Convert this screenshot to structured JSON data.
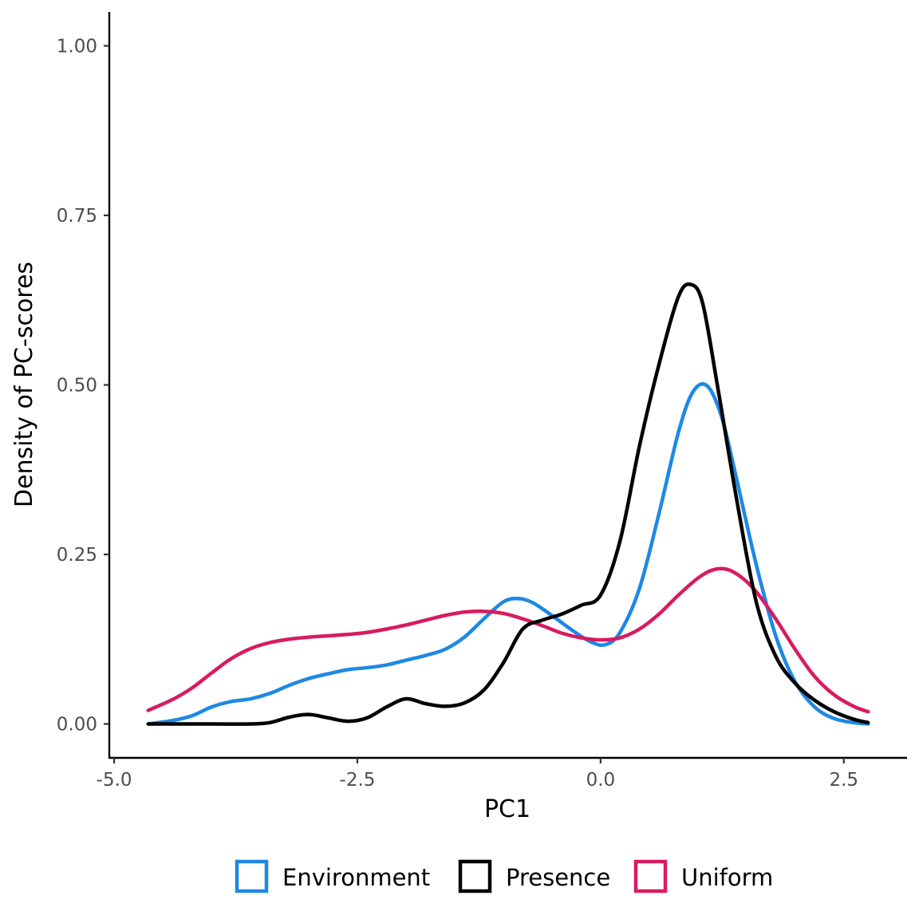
{
  "chart_data": {
    "type": "line",
    "xlabel": "PC1",
    "ylabel": "Density of PC-scores",
    "xlim": [
      -5.05,
      3.15
    ],
    "ylim": [
      -0.05,
      1.05
    ],
    "xticks": [
      -5.0,
      -2.5,
      0.0,
      2.5
    ],
    "xtick_labels": [
      "-5.0",
      "-2.5",
      "0.0",
      "2.5"
    ],
    "yticks": [
      0.0,
      0.25,
      0.5,
      0.75,
      1.0
    ],
    "ytick_labels": [
      "0.00",
      "0.25",
      "0.50",
      "0.75",
      "1.00"
    ],
    "grid": false,
    "legend_position": "bottom",
    "series": [
      {
        "name": "Environment",
        "color": "#1E88E5",
        "x": [
          -4.65,
          -4.4,
          -4.2,
          -4.0,
          -3.8,
          -3.6,
          -3.4,
          -3.2,
          -3.0,
          -2.8,
          -2.6,
          -2.4,
          -2.2,
          -2.0,
          -1.8,
          -1.6,
          -1.4,
          -1.2,
          -1.0,
          -0.85,
          -0.7,
          -0.5,
          -0.3,
          -0.1,
          0.05,
          0.2,
          0.4,
          0.6,
          0.8,
          0.95,
          1.1,
          1.25,
          1.4,
          1.6,
          1.8,
          2.0,
          2.2,
          2.4,
          2.6,
          2.75
        ],
        "y": [
          0.0,
          0.005,
          0.012,
          0.025,
          0.033,
          0.037,
          0.045,
          0.057,
          0.067,
          0.074,
          0.08,
          0.083,
          0.087,
          0.094,
          0.101,
          0.11,
          0.128,
          0.155,
          0.18,
          0.185,
          0.179,
          0.16,
          0.139,
          0.121,
          0.117,
          0.135,
          0.2,
          0.31,
          0.43,
          0.49,
          0.498,
          0.45,
          0.36,
          0.235,
          0.13,
          0.062,
          0.025,
          0.008,
          0.002,
          0.0
        ]
      },
      {
        "name": "Presence",
        "color": "#000000",
        "x": [
          -4.65,
          -4.0,
          -3.6,
          -3.4,
          -3.2,
          -3.0,
          -2.8,
          -2.6,
          -2.4,
          -2.2,
          -2.0,
          -1.8,
          -1.6,
          -1.4,
          -1.2,
          -1.0,
          -0.8,
          -0.6,
          -0.4,
          -0.2,
          0.0,
          0.2,
          0.4,
          0.6,
          0.8,
          0.93,
          1.05,
          1.2,
          1.4,
          1.6,
          1.8,
          2.0,
          2.2,
          2.4,
          2.6,
          2.75
        ],
        "y": [
          0.0,
          0.0,
          0.0,
          0.002,
          0.01,
          0.014,
          0.009,
          0.004,
          0.009,
          0.025,
          0.037,
          0.03,
          0.026,
          0.031,
          0.05,
          0.09,
          0.14,
          0.153,
          0.162,
          0.175,
          0.19,
          0.27,
          0.41,
          0.53,
          0.63,
          0.648,
          0.62,
          0.5,
          0.33,
          0.18,
          0.1,
          0.06,
          0.035,
          0.018,
          0.007,
          0.002
        ]
      },
      {
        "name": "Uniform",
        "color": "#D81B60",
        "x": [
          -4.65,
          -4.4,
          -4.2,
          -4.0,
          -3.8,
          -3.6,
          -3.4,
          -3.2,
          -3.0,
          -2.8,
          -2.6,
          -2.4,
          -2.2,
          -2.0,
          -1.8,
          -1.6,
          -1.4,
          -1.2,
          -1.0,
          -0.8,
          -0.6,
          -0.4,
          -0.2,
          0.0,
          0.2,
          0.4,
          0.6,
          0.8,
          1.0,
          1.15,
          1.3,
          1.45,
          1.6,
          1.8,
          2.0,
          2.2,
          2.4,
          2.6,
          2.75
        ],
        "y": [
          0.02,
          0.036,
          0.053,
          0.075,
          0.096,
          0.111,
          0.12,
          0.125,
          0.128,
          0.13,
          0.132,
          0.135,
          0.14,
          0.146,
          0.153,
          0.16,
          0.165,
          0.166,
          0.163,
          0.155,
          0.145,
          0.134,
          0.127,
          0.124,
          0.127,
          0.14,
          0.162,
          0.19,
          0.215,
          0.227,
          0.228,
          0.216,
          0.195,
          0.155,
          0.11,
          0.07,
          0.043,
          0.026,
          0.018
        ]
      }
    ]
  }
}
